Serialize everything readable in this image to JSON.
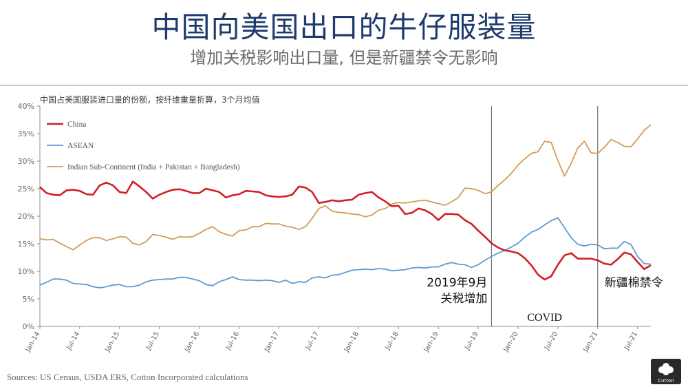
{
  "header": {
    "title": "中国向美国出口的牛仔服装量",
    "subtitle": "增加关税影响出口量, 但是新疆禁令无影响"
  },
  "source": "Sources: US Census, USDA ERS, Cotton Incorporated calculations",
  "logo": {
    "icon": "cotton-logo-icon",
    "text": "Cotton"
  },
  "chart_data": {
    "type": "line",
    "note": "中国占美国服装进口量的份额，按纤维重量折算，3个月均值",
    "ylim": [
      0,
      40
    ],
    "yticks": [
      "0%",
      "5%",
      "10%",
      "15%",
      "20%",
      "25%",
      "30%",
      "35%",
      "40%"
    ],
    "xlim": [
      "2014-01",
      "2021-09"
    ],
    "xticks": [
      "Jan-14",
      "Jul-14",
      "Jan-15",
      "Jul-15",
      "Jan-16",
      "Jul-16",
      "Jan-17",
      "Jul-17",
      "Jan-18",
      "Jul-18",
      "Jan-19",
      "Jul-19",
      "Jan-20",
      "Jul-20",
      "Jan-21",
      "Jul-21"
    ],
    "grid": "none",
    "legend": "top-left",
    "series": [
      {
        "name": "China",
        "color": "#d11f26",
        "points": [
          [
            "2014-01",
            25.3
          ],
          [
            "2014-02",
            24.2
          ],
          [
            "2014-03",
            23.9
          ],
          [
            "2014-04",
            23.8
          ],
          [
            "2014-05",
            24.7
          ],
          [
            "2014-06",
            24.8
          ],
          [
            "2014-07",
            24.6
          ],
          [
            "2014-08",
            24.0
          ],
          [
            "2014-09",
            23.9
          ],
          [
            "2014-10",
            25.6
          ],
          [
            "2014-11",
            26.1
          ],
          [
            "2014-12",
            25.6
          ],
          [
            "2015-01",
            24.4
          ],
          [
            "2015-02",
            24.2
          ],
          [
            "2015-03",
            26.3
          ],
          [
            "2015-04",
            25.4
          ],
          [
            "2015-05",
            24.4
          ],
          [
            "2015-06",
            23.2
          ],
          [
            "2015-07",
            23.9
          ],
          [
            "2015-08",
            24.4
          ],
          [
            "2015-09",
            24.8
          ],
          [
            "2015-10",
            24.9
          ],
          [
            "2015-11",
            24.6
          ],
          [
            "2015-12",
            24.2
          ],
          [
            "2016-01",
            24.2
          ],
          [
            "2016-02",
            25.0
          ],
          [
            "2016-03",
            24.7
          ],
          [
            "2016-04",
            24.4
          ],
          [
            "2016-05",
            23.4
          ],
          [
            "2016-06",
            23.8
          ],
          [
            "2016-07",
            24.0
          ],
          [
            "2016-08",
            24.6
          ],
          [
            "2016-09",
            24.5
          ],
          [
            "2016-10",
            24.4
          ],
          [
            "2016-11",
            23.8
          ],
          [
            "2016-12",
            23.6
          ],
          [
            "2017-01",
            23.5
          ],
          [
            "2017-02",
            23.6
          ],
          [
            "2017-03",
            23.9
          ],
          [
            "2017-04",
            25.4
          ],
          [
            "2017-05",
            25.2
          ],
          [
            "2017-06",
            24.4
          ],
          [
            "2017-07",
            22.4
          ],
          [
            "2017-08",
            22.6
          ],
          [
            "2017-09",
            22.9
          ],
          [
            "2017-10",
            22.7
          ],
          [
            "2017-11",
            22.9
          ],
          [
            "2017-12",
            23.0
          ],
          [
            "2018-01",
            23.9
          ],
          [
            "2018-02",
            24.2
          ],
          [
            "2018-03",
            24.4
          ],
          [
            "2018-04",
            23.4
          ],
          [
            "2018-05",
            22.7
          ],
          [
            "2018-06",
            21.8
          ],
          [
            "2018-07",
            21.9
          ],
          [
            "2018-08",
            20.4
          ],
          [
            "2018-09",
            20.6
          ],
          [
            "2018-10",
            21.4
          ],
          [
            "2018-11",
            21.1
          ],
          [
            "2018-12",
            20.4
          ],
          [
            "2019-01",
            19.3
          ],
          [
            "2019-02",
            20.4
          ],
          [
            "2019-03",
            20.4
          ],
          [
            "2019-04",
            20.3
          ],
          [
            "2019-05",
            19.3
          ],
          [
            "2019-06",
            18.6
          ],
          [
            "2019-07",
            17.4
          ],
          [
            "2019-08",
            16.3
          ],
          [
            "2019-09",
            15.1
          ],
          [
            "2019-10",
            14.3
          ],
          [
            "2019-11",
            13.8
          ],
          [
            "2019-12",
            13.6
          ],
          [
            "2020-01",
            13.3
          ],
          [
            "2020-02",
            12.4
          ],
          [
            "2020-03",
            11.1
          ],
          [
            "2020-04",
            9.4
          ],
          [
            "2020-05",
            8.5
          ],
          [
            "2020-06",
            9.1
          ],
          [
            "2020-07",
            11.2
          ],
          [
            "2020-08",
            12.9
          ],
          [
            "2020-09",
            13.3
          ],
          [
            "2020-10",
            12.3
          ],
          [
            "2020-11",
            12.3
          ],
          [
            "2020-12",
            12.3
          ],
          [
            "2021-01",
            12.0
          ],
          [
            "2021-02",
            11.4
          ],
          [
            "2021-03",
            11.2
          ],
          [
            "2021-04",
            12.2
          ],
          [
            "2021-05",
            13.4
          ],
          [
            "2021-06",
            13.1
          ],
          [
            "2021-07",
            11.7
          ],
          [
            "2021-08",
            10.4
          ],
          [
            "2021-09",
            11.1
          ]
        ]
      },
      {
        "name": "ASEAN",
        "color": "#5b9bd5",
        "points": [
          [
            "2014-01",
            7.5
          ],
          [
            "2014-02",
            8.0
          ],
          [
            "2014-03",
            8.6
          ],
          [
            "2014-04",
            8.6
          ],
          [
            "2014-05",
            8.4
          ],
          [
            "2014-06",
            7.8
          ],
          [
            "2014-07",
            7.7
          ],
          [
            "2014-08",
            7.6
          ],
          [
            "2014-09",
            7.2
          ],
          [
            "2014-10",
            7.0
          ],
          [
            "2014-11",
            7.2
          ],
          [
            "2014-12",
            7.5
          ],
          [
            "2015-01",
            7.6
          ],
          [
            "2015-02",
            7.2
          ],
          [
            "2015-03",
            7.2
          ],
          [
            "2015-04",
            7.5
          ],
          [
            "2015-05",
            8.1
          ],
          [
            "2015-06",
            8.4
          ],
          [
            "2015-07",
            8.5
          ],
          [
            "2015-08",
            8.6
          ],
          [
            "2015-09",
            8.6
          ],
          [
            "2015-10",
            8.9
          ],
          [
            "2015-11",
            8.9
          ],
          [
            "2015-12",
            8.6
          ],
          [
            "2016-01",
            8.3
          ],
          [
            "2016-02",
            7.6
          ],
          [
            "2016-03",
            7.4
          ],
          [
            "2016-04",
            8.1
          ],
          [
            "2016-05",
            8.5
          ],
          [
            "2016-06",
            9.0
          ],
          [
            "2016-07",
            8.5
          ],
          [
            "2016-08",
            8.4
          ],
          [
            "2016-09",
            8.4
          ],
          [
            "2016-10",
            8.3
          ],
          [
            "2016-11",
            8.4
          ],
          [
            "2016-12",
            8.3
          ],
          [
            "2017-01",
            8.0
          ],
          [
            "2017-02",
            8.4
          ],
          [
            "2017-03",
            7.8
          ],
          [
            "2017-04",
            8.1
          ],
          [
            "2017-05",
            8.0
          ],
          [
            "2017-06",
            8.8
          ],
          [
            "2017-07",
            9.0
          ],
          [
            "2017-08",
            8.8
          ],
          [
            "2017-09",
            9.3
          ],
          [
            "2017-10",
            9.4
          ],
          [
            "2017-11",
            9.8
          ],
          [
            "2017-12",
            10.2
          ],
          [
            "2018-01",
            10.3
          ],
          [
            "2018-02",
            10.4
          ],
          [
            "2018-03",
            10.3
          ],
          [
            "2018-04",
            10.5
          ],
          [
            "2018-05",
            10.4
          ],
          [
            "2018-06",
            10.1
          ],
          [
            "2018-07",
            10.2
          ],
          [
            "2018-08",
            10.3
          ],
          [
            "2018-09",
            10.6
          ],
          [
            "2018-10",
            10.7
          ],
          [
            "2018-11",
            10.6
          ],
          [
            "2018-12",
            10.8
          ],
          [
            "2019-01",
            10.8
          ],
          [
            "2019-02",
            11.3
          ],
          [
            "2019-03",
            11.6
          ],
          [
            "2019-04",
            11.3
          ],
          [
            "2019-05",
            11.2
          ],
          [
            "2019-06",
            10.7
          ],
          [
            "2019-07",
            11.2
          ],
          [
            "2019-08",
            12.0
          ],
          [
            "2019-09",
            12.7
          ],
          [
            "2019-10",
            13.3
          ],
          [
            "2019-11",
            13.8
          ],
          [
            "2019-12",
            14.4
          ],
          [
            "2020-01",
            15.1
          ],
          [
            "2020-02",
            16.2
          ],
          [
            "2020-03",
            17.1
          ],
          [
            "2020-04",
            17.6
          ],
          [
            "2020-05",
            18.4
          ],
          [
            "2020-06",
            19.2
          ],
          [
            "2020-07",
            19.7
          ],
          [
            "2020-08",
            17.9
          ],
          [
            "2020-09",
            16.1
          ],
          [
            "2020-10",
            14.9
          ],
          [
            "2020-11",
            14.6
          ],
          [
            "2020-12",
            14.9
          ],
          [
            "2021-01",
            14.8
          ],
          [
            "2021-02",
            14.1
          ],
          [
            "2021-03",
            14.2
          ],
          [
            "2021-04",
            14.2
          ],
          [
            "2021-05",
            15.4
          ],
          [
            "2021-06",
            14.9
          ],
          [
            "2021-07",
            12.7
          ],
          [
            "2021-08",
            11.4
          ],
          [
            "2021-09",
            11.3
          ]
        ]
      },
      {
        "name": "Indian Sub-Continent (India + Pakistan + Bangladesh)",
        "color": "#d39b5a",
        "points": [
          [
            "2014-01",
            15.9
          ],
          [
            "2014-02",
            15.7
          ],
          [
            "2014-03",
            15.8
          ],
          [
            "2014-04",
            15.1
          ],
          [
            "2014-05",
            14.5
          ],
          [
            "2014-06",
            13.9
          ],
          [
            "2014-07",
            14.8
          ],
          [
            "2014-08",
            15.6
          ],
          [
            "2014-09",
            16.1
          ],
          [
            "2014-10",
            16.1
          ],
          [
            "2014-11",
            15.6
          ],
          [
            "2014-12",
            15.9
          ],
          [
            "2015-01",
            16.3
          ],
          [
            "2015-02",
            16.2
          ],
          [
            "2015-03",
            15.1
          ],
          [
            "2015-04",
            14.8
          ],
          [
            "2015-05",
            15.4
          ],
          [
            "2015-06",
            16.7
          ],
          [
            "2015-07",
            16.5
          ],
          [
            "2015-08",
            16.2
          ],
          [
            "2015-09",
            15.8
          ],
          [
            "2015-10",
            16.3
          ],
          [
            "2015-11",
            16.2
          ],
          [
            "2015-12",
            16.3
          ],
          [
            "2016-01",
            16.9
          ],
          [
            "2016-02",
            17.6
          ],
          [
            "2016-03",
            18.1
          ],
          [
            "2016-04",
            17.2
          ],
          [
            "2016-05",
            16.7
          ],
          [
            "2016-06",
            16.4
          ],
          [
            "2016-07",
            17.4
          ],
          [
            "2016-08",
            17.5
          ],
          [
            "2016-09",
            18.1
          ],
          [
            "2016-10",
            18.1
          ],
          [
            "2016-11",
            18.7
          ],
          [
            "2016-12",
            18.6
          ],
          [
            "2017-01",
            18.6
          ],
          [
            "2017-02",
            18.2
          ],
          [
            "2017-03",
            18.0
          ],
          [
            "2017-04",
            17.6
          ],
          [
            "2017-05",
            18.1
          ],
          [
            "2017-06",
            19.6
          ],
          [
            "2017-07",
            21.4
          ],
          [
            "2017-08",
            21.9
          ],
          [
            "2017-09",
            20.9
          ],
          [
            "2017-10",
            20.7
          ],
          [
            "2017-11",
            20.6
          ],
          [
            "2017-12",
            20.4
          ],
          [
            "2018-01",
            20.3
          ],
          [
            "2018-02",
            19.9
          ],
          [
            "2018-03",
            20.2
          ],
          [
            "2018-04",
            21.1
          ],
          [
            "2018-05",
            21.4
          ],
          [
            "2018-06",
            22.2
          ],
          [
            "2018-07",
            22.5
          ],
          [
            "2018-08",
            22.4
          ],
          [
            "2018-09",
            22.6
          ],
          [
            "2018-10",
            22.8
          ],
          [
            "2018-11",
            22.9
          ],
          [
            "2018-12",
            22.6
          ],
          [
            "2019-01",
            22.3
          ],
          [
            "2019-02",
            22.0
          ],
          [
            "2019-03",
            22.6
          ],
          [
            "2019-04",
            23.4
          ],
          [
            "2019-05",
            25.1
          ],
          [
            "2019-06",
            25.0
          ],
          [
            "2019-07",
            24.7
          ],
          [
            "2019-08",
            24.1
          ],
          [
            "2019-09",
            24.4
          ],
          [
            "2019-10",
            25.6
          ],
          [
            "2019-11",
            26.6
          ],
          [
            "2019-12",
            27.8
          ],
          [
            "2020-01",
            29.3
          ],
          [
            "2020-02",
            30.4
          ],
          [
            "2020-03",
            31.4
          ],
          [
            "2020-04",
            31.7
          ],
          [
            "2020-05",
            33.6
          ],
          [
            "2020-06",
            33.4
          ],
          [
            "2020-07",
            30.1
          ],
          [
            "2020-08",
            27.3
          ],
          [
            "2020-09",
            29.6
          ],
          [
            "2020-10",
            32.4
          ],
          [
            "2020-11",
            33.6
          ],
          [
            "2020-12",
            31.5
          ],
          [
            "2021-01",
            31.4
          ],
          [
            "2021-02",
            32.5
          ],
          [
            "2021-03",
            33.9
          ],
          [
            "2021-04",
            33.4
          ],
          [
            "2021-05",
            32.7
          ],
          [
            "2021-06",
            32.6
          ],
          [
            "2021-07",
            34.0
          ],
          [
            "2021-08",
            35.6
          ],
          [
            "2021-09",
            36.6
          ]
        ]
      }
    ],
    "events": [
      {
        "at": "2019-09",
        "label_lines": [
          "2019年9月",
          "关税增加"
        ]
      },
      {
        "at": "2021-01",
        "label_lines": [
          "新疆棉禁令"
        ]
      }
    ],
    "period_label": "COVID"
  }
}
